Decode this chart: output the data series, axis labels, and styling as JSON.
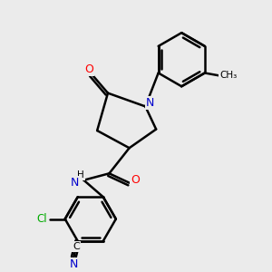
{
  "background_color": "#ebebeb",
  "bond_color": "#000000",
  "bond_width": 1.8,
  "atom_colors": {
    "O": "#ff0000",
    "N": "#0000cc",
    "Cl": "#00aa00",
    "C": "#000000",
    "H": "#000000"
  },
  "figsize": [
    3.0,
    3.0
  ],
  "dpi": 100
}
